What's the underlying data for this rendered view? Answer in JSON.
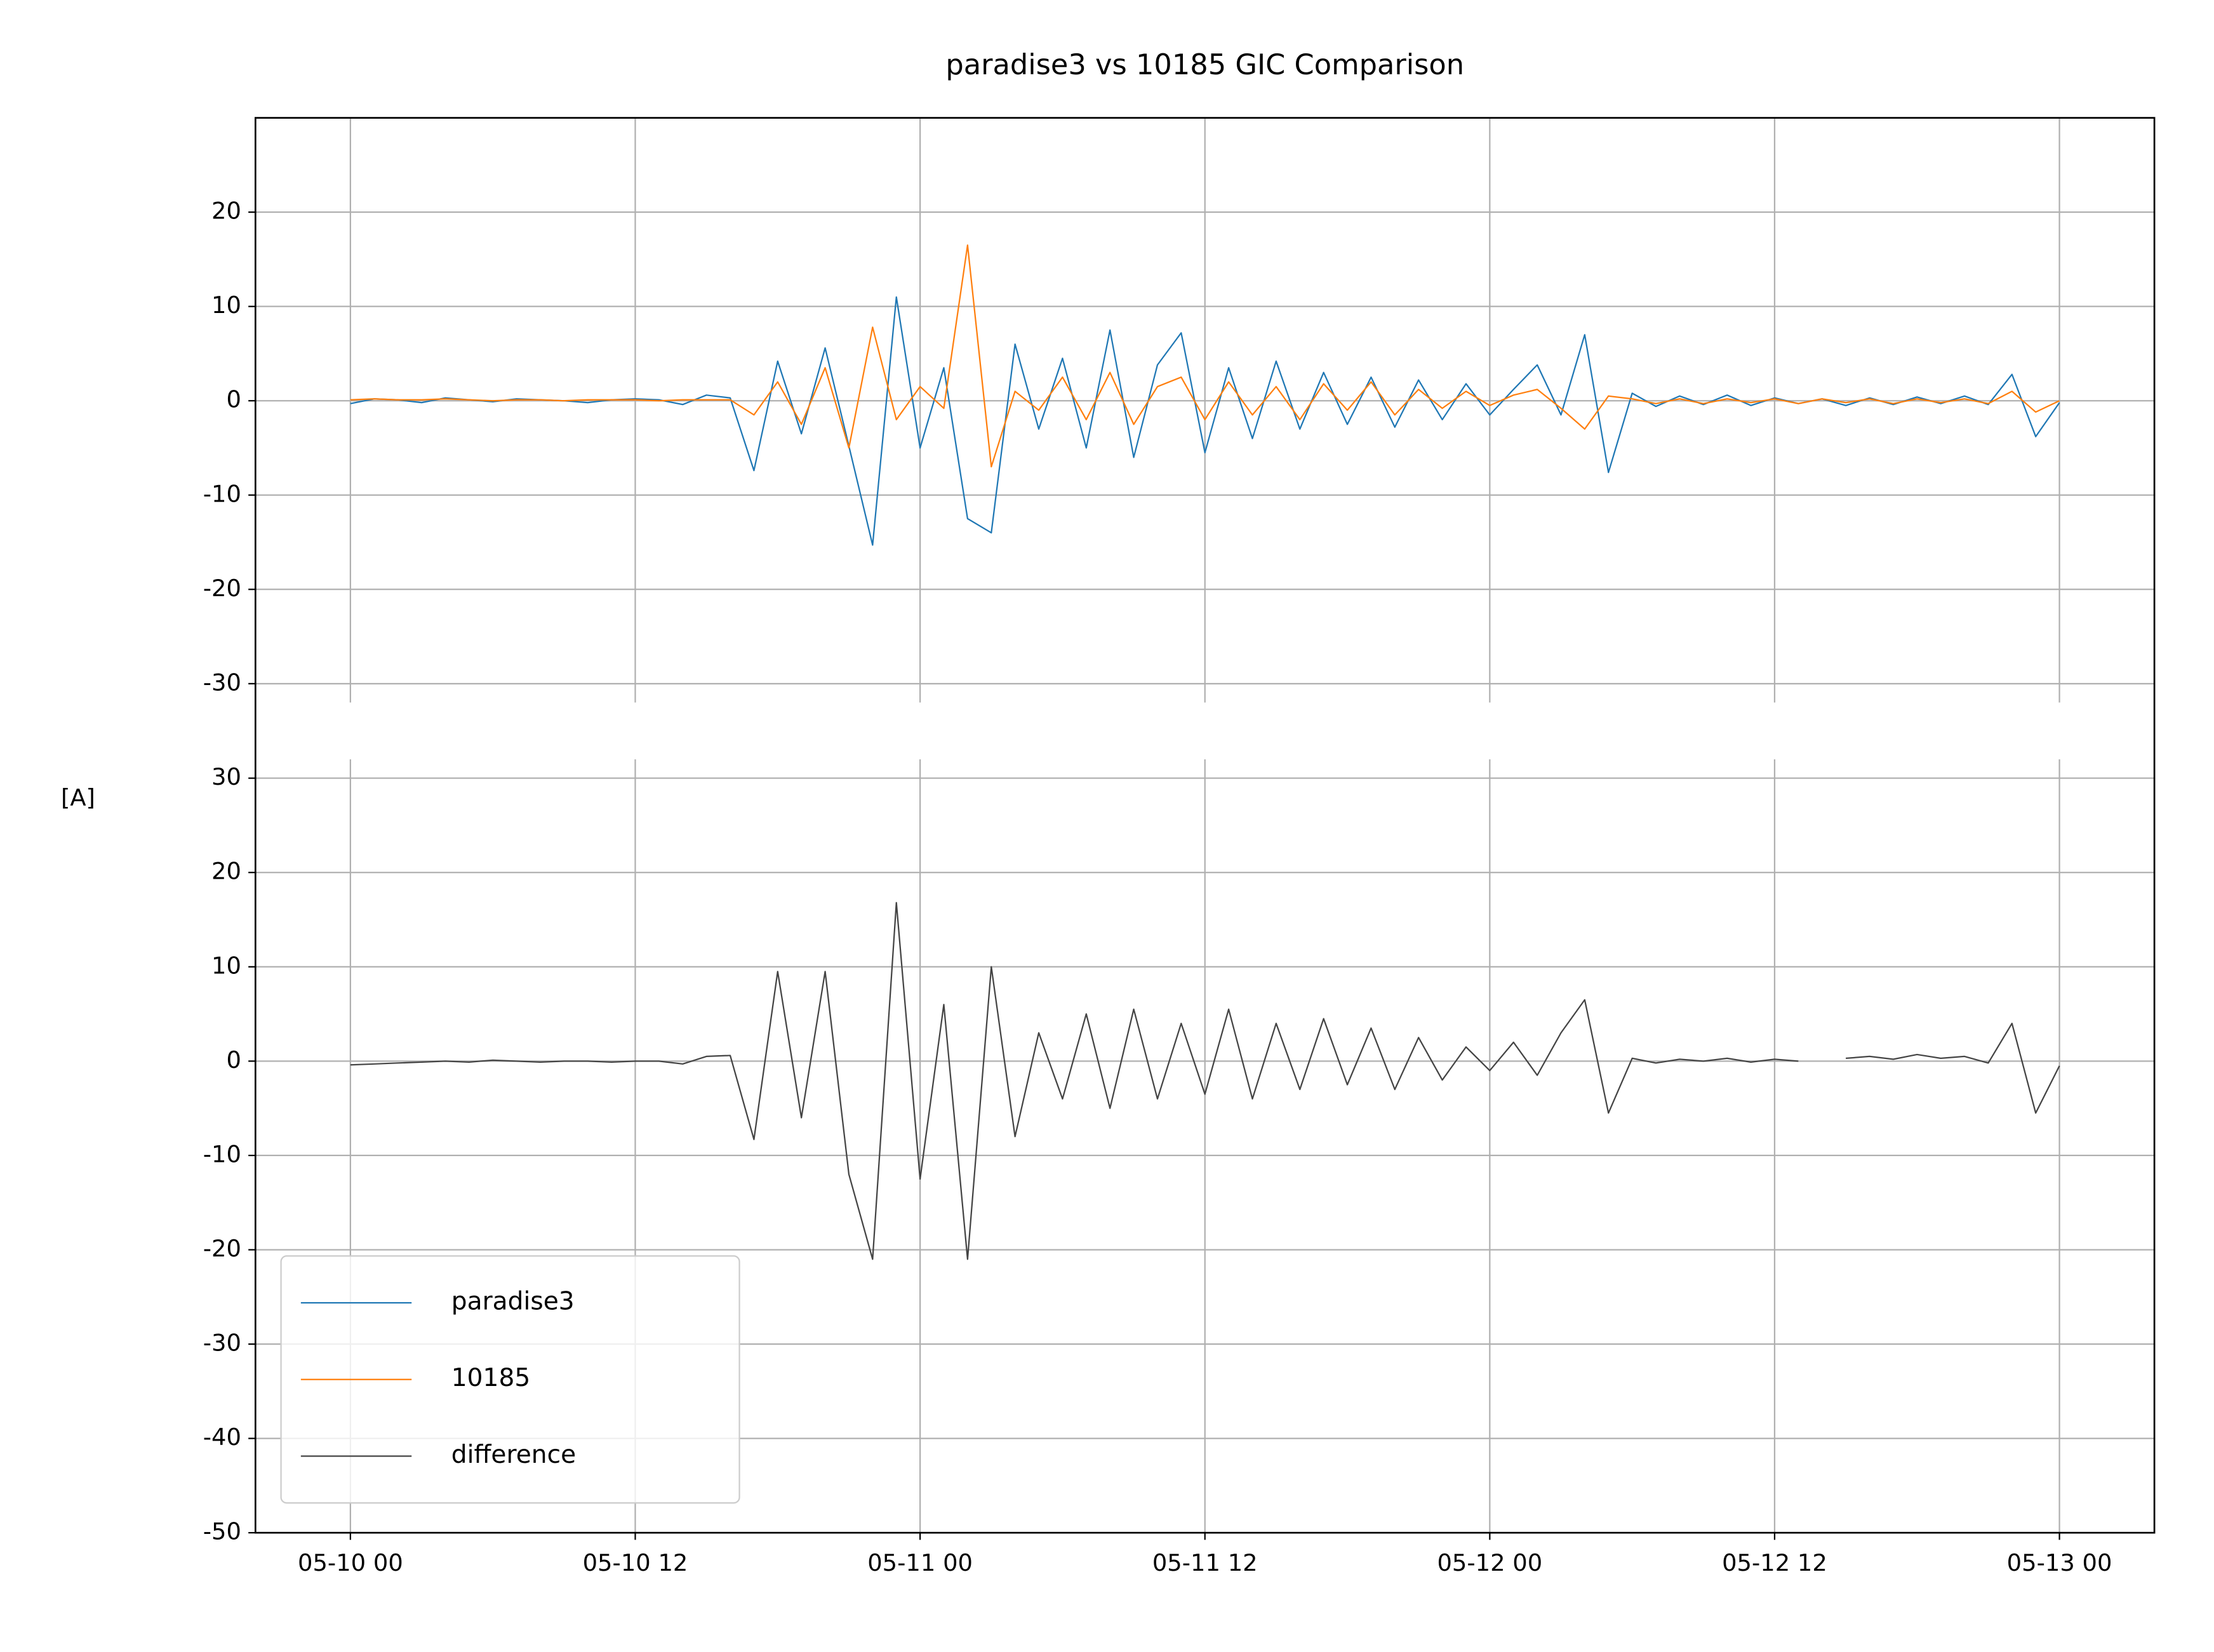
{
  "chart_data": [
    {
      "type": "line",
      "title": "paradise3 vs 10185 GIC Comparison",
      "x": [
        "05-10 00",
        "05-10 01",
        "05-10 02",
        "05-10 03",
        "05-10 04",
        "05-10 05",
        "05-10 06",
        "05-10 07",
        "05-10 08",
        "05-10 09",
        "05-10 10",
        "05-10 11",
        "05-10 12",
        "05-10 13",
        "05-10 14",
        "05-10 15",
        "05-10 16",
        "05-10 17",
        "05-10 18",
        "05-10 19",
        "05-10 20",
        "05-10 21",
        "05-10 22",
        "05-10 23",
        "05-11 00",
        "05-11 01",
        "05-11 02",
        "05-11 03",
        "05-11 04",
        "05-11 05",
        "05-11 06",
        "05-11 07",
        "05-11 08",
        "05-11 09",
        "05-11 10",
        "05-11 11",
        "05-11 12",
        "05-11 13",
        "05-11 14",
        "05-11 15",
        "05-11 16",
        "05-11 17",
        "05-11 18",
        "05-11 19",
        "05-11 20",
        "05-11 21",
        "05-11 22",
        "05-11 23",
        "05-12 00",
        "05-12 01",
        "05-12 02",
        "05-12 03",
        "05-12 04",
        "05-12 05",
        "05-12 06",
        "05-12 07",
        "05-12 08",
        "05-12 09",
        "05-12 10",
        "05-12 11",
        "05-12 12",
        "05-12 13",
        "05-12 14",
        "05-12 15",
        "05-12 16",
        "05-12 17",
        "05-12 18",
        "05-12 19",
        "05-12 20",
        "05-12 21",
        "05-12 22",
        "05-12 23",
        "05-13 00"
      ],
      "ylim": [
        -32,
        30
      ],
      "yticks": [
        -30,
        -20,
        -10,
        0,
        10,
        20
      ],
      "grid": true,
      "series": [
        {
          "name": "paradise3",
          "color": "#1f77b4",
          "values": [
            -0.3,
            0.2,
            0.1,
            -0.2,
            0.3,
            0.1,
            -0.1,
            0.2,
            0.1,
            0,
            -0.2,
            0.1,
            0.2,
            0.1,
            -0.4,
            0.6,
            0.3,
            -7.4,
            4.2,
            -3.5,
            5.6,
            -4.8,
            -15.3,
            11,
            -5,
            3.5,
            -12.5,
            -14,
            6,
            -3,
            4.5,
            -5,
            7.5,
            -6,
            3.8,
            7.2,
            -5.5,
            3.5,
            -4,
            4.2,
            -3,
            3,
            -2.5,
            2.5,
            -2.8,
            2.2,
            -2,
            1.8,
            -1.5,
            1.2,
            3.8,
            -1.5,
            7,
            -7.6,
            0.8,
            -0.6,
            0.5,
            -0.4,
            0.6,
            -0.5,
            0.3,
            -0.3,
            0.2,
            -0.5,
            0.3,
            -0.4,
            0.4,
            -0.3,
            0.5,
            -0.4,
            2.8,
            -3.8,
            -0.2
          ]
        },
        {
          "name": "10185",
          "color": "#ff7f0e",
          "values": [
            0.1,
            0.2,
            0.1,
            0.1,
            0.2,
            0.1,
            0,
            0.1,
            0.1,
            0,
            0.1,
            0.1,
            0.1,
            0,
            0.1,
            0.1,
            0.1,
            -1.5,
            2,
            -2.5,
            3.5,
            -5,
            7.8,
            -2,
            1.5,
            -0.8,
            16.5,
            -7,
            1,
            -1,
            2.5,
            -2,
            3,
            -2.5,
            1.5,
            2.5,
            -2,
            2,
            -1.5,
            1.5,
            -2,
            1.8,
            -1,
            2,
            -1.5,
            1.2,
            -0.8,
            1,
            -0.5,
            0.6,
            1.2,
            -0.8,
            -3,
            0.5,
            0.2,
            -0.3,
            0.2,
            -0.3,
            0.2,
            -0.2,
            0.2,
            -0.3,
            0.2,
            -0.2,
            0.2,
            -0.3,
            0.2,
            -0.2,
            0.2,
            -0.3,
            1,
            -1.2,
            0
          ]
        }
      ]
    },
    {
      "type": "line",
      "ylabel": "[A]",
      "x": [
        "05-10 00",
        "05-10 01",
        "05-10 02",
        "05-10 03",
        "05-10 04",
        "05-10 05",
        "05-10 06",
        "05-10 07",
        "05-10 08",
        "05-10 09",
        "05-10 10",
        "05-10 11",
        "05-10 12",
        "05-10 13",
        "05-10 14",
        "05-10 15",
        "05-10 16",
        "05-10 17",
        "05-10 18",
        "05-10 19",
        "05-10 20",
        "05-10 21",
        "05-10 22",
        "05-10 23",
        "05-11 00",
        "05-11 01",
        "05-11 02",
        "05-11 03",
        "05-11 04",
        "05-11 05",
        "05-11 06",
        "05-11 07",
        "05-11 08",
        "05-11 09",
        "05-11 10",
        "05-11 11",
        "05-11 12",
        "05-11 13",
        "05-11 14",
        "05-11 15",
        "05-11 16",
        "05-11 17",
        "05-11 18",
        "05-11 19",
        "05-11 20",
        "05-11 21",
        "05-11 22",
        "05-11 23",
        "05-12 00",
        "05-12 01",
        "05-12 02",
        "05-12 03",
        "05-12 04",
        "05-12 05",
        "05-12 06",
        "05-12 07",
        "05-12 08",
        "05-12 09",
        "05-12 10",
        "05-12 11",
        "05-12 12",
        "05-12 13",
        "05-12 14",
        "05-12 15",
        "05-12 16",
        "05-12 17",
        "05-12 18",
        "05-12 19",
        "05-12 20",
        "05-12 21",
        "05-12 22",
        "05-12 23",
        "05-13 00"
      ],
      "xlim": [
        "05-09 20",
        "05-13 04"
      ],
      "xticks": [
        "05-10 00",
        "05-10 12",
        "05-11 00",
        "05-11 12",
        "05-12 00",
        "05-12 12",
        "05-13 00"
      ],
      "ylim": [
        -50,
        32
      ],
      "yticks": [
        -50,
        -40,
        -30,
        -20,
        -10,
        0,
        10,
        20,
        30
      ],
      "grid": true,
      "legend": "lower left",
      "series": [
        {
          "name": "difference",
          "color": "#444444",
          "values": [
            -0.4,
            -0.3,
            -0.2,
            -0.1,
            0,
            -0.1,
            0.1,
            0,
            -0.1,
            0,
            0,
            -0.1,
            0,
            0,
            -0.3,
            0.5,
            0.6,
            -8.3,
            9.5,
            -6,
            9.5,
            -12,
            -21,
            16.8,
            -12.5,
            6,
            -21,
            10,
            -8,
            3,
            -4,
            5,
            -5,
            5.5,
            -4,
            4,
            -3.5,
            5.5,
            -4,
            4,
            -3,
            4.5,
            -2.5,
            3.5,
            -3,
            2.5,
            -2,
            1.5,
            -1,
            2,
            -1.5,
            3,
            6.5,
            -5.5,
            0.3,
            -0.2,
            0.2,
            0,
            0.3,
            -0.1,
            0.2,
            0,
            null,
            0.3,
            0.5,
            0.2,
            0.7,
            0.3,
            0.5,
            -0.2,
            4,
            -5.5,
            -0.5
          ]
        }
      ]
    }
  ]
}
